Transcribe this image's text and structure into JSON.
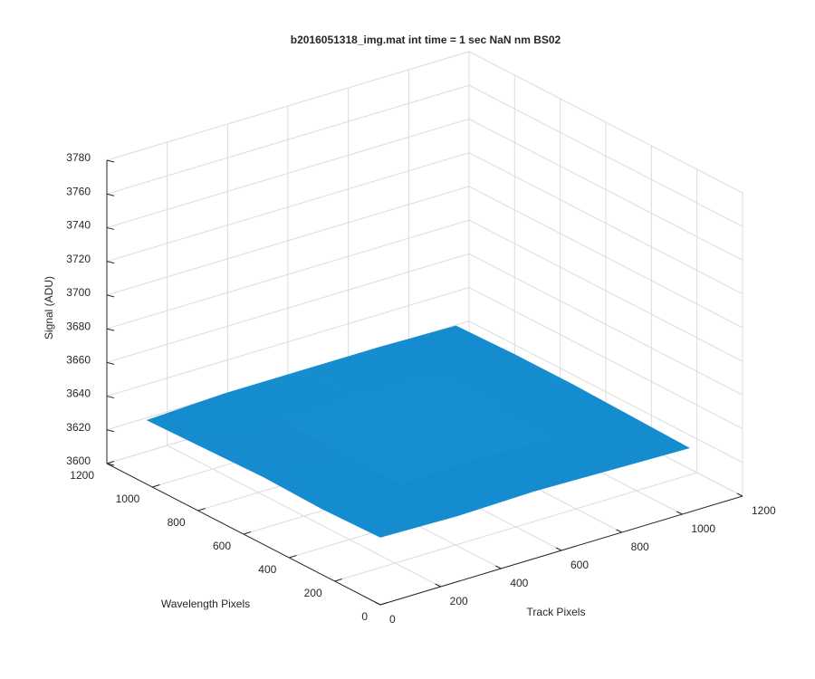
{
  "chart_data": {
    "type": "surface3d",
    "title": "b2016051318_img.mat int time = 1 sec  NaN nm BS02",
    "xlabel": "Track Pixels",
    "ylabel": "Wavelength Pixels",
    "zlabel": "Signal (ADU)",
    "xlim": [
      0,
      1200
    ],
    "xticks": [
      0,
      200,
      400,
      600,
      800,
      1000,
      1200
    ],
    "ylim": [
      0,
      1200
    ],
    "yticks": [
      0,
      200,
      400,
      600,
      800,
      1000,
      1200
    ],
    "zlim": [
      3600,
      3780
    ],
    "zticks": [
      3600,
      3620,
      3640,
      3660,
      3680,
      3700,
      3720,
      3740,
      3760,
      3780
    ],
    "grid": true,
    "x": [
      0,
      256,
      512,
      768,
      1024
    ],
    "y": [
      0,
      256,
      512,
      768,
      1024
    ],
    "z": [
      [
        3640,
        3639,
        3640,
        3639,
        3638
      ],
      [
        3639,
        3640,
        3641,
        3640,
        3639
      ],
      [
        3640,
        3641,
        3642,
        3641,
        3640
      ],
      [
        3639,
        3641,
        3641,
        3641,
        3640
      ],
      [
        3638,
        3640,
        3640,
        3640,
        3639
      ]
    ]
  }
}
